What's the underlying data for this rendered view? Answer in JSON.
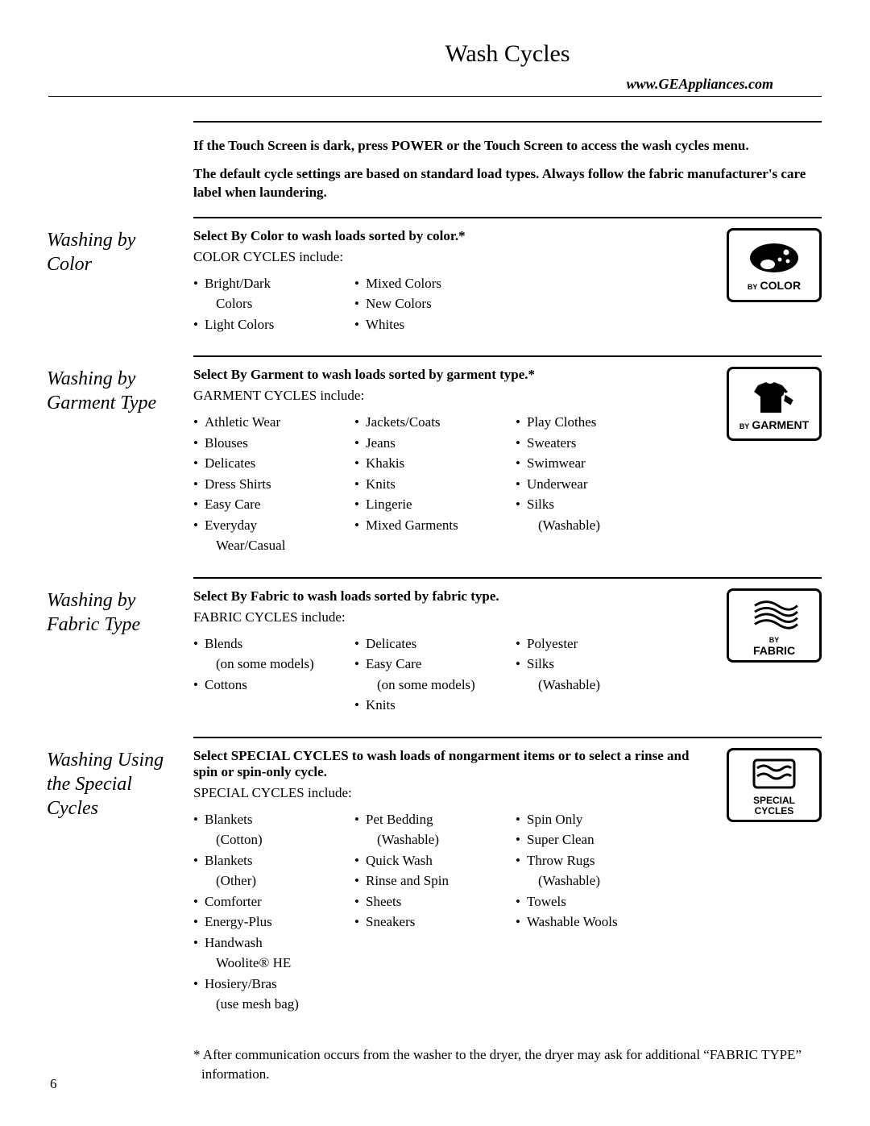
{
  "page_title": "Wash Cycles",
  "url": "www.GEAppliances.com",
  "intro": {
    "line1": "If the Touch Screen is dark, press POWER or the Touch Screen to access the wash cycles menu.",
    "line2": "The default cycle settings are based on standard load types. Always follow the fabric manufacturer's care label when laundering."
  },
  "sections": {
    "color": {
      "heading": "Washing by Color",
      "select": "Select By Color to wash loads sorted by color.*",
      "include_label": "COLOR CYCLES include:",
      "icon_label_small": "BY",
      "icon_label_big": "COLOR",
      "cols": [
        [
          "Bright/Dark Colors",
          "Light Colors"
        ],
        [
          "Mixed Colors",
          "New Colors",
          "Whites"
        ]
      ]
    },
    "garment": {
      "heading": "Washing by Garment Type",
      "select": "Select By Garment to wash loads sorted by garment type.*",
      "include_label": "GARMENT CYCLES include:",
      "icon_label_small": "BY",
      "icon_label_big": "GARMENT",
      "cols": [
        [
          "Athletic Wear",
          "Blouses",
          "Delicates",
          "Dress Shirts",
          "Easy Care",
          "Everyday Wear/Casual"
        ],
        [
          "Jackets/Coats",
          "Jeans",
          "Khakis",
          "Knits",
          "Lingerie",
          "Mixed Garments"
        ],
        [
          "Play Clothes",
          "Sweaters",
          "Swimwear",
          "Underwear",
          "Silks (Washable)"
        ]
      ]
    },
    "fabric": {
      "heading": "Washing by Fabric Type",
      "select": "Select By Fabric to wash loads sorted by fabric type.",
      "include_label": "FABRIC CYCLES include:",
      "icon_label_small": "BY",
      "icon_label_big": "FABRIC",
      "cols": [
        [
          "Blends (on some models)",
          "Cottons"
        ],
        [
          "Delicates",
          "Easy Care (on some models)",
          "Knits"
        ],
        [
          "Polyester",
          "Silks (Washable)"
        ]
      ]
    },
    "special": {
      "heading": "Washing Using the Special Cycles",
      "select": "Select SPECIAL CYCLES to wash loads of nongarment items or to select a rinse and spin or spin-only cycle.",
      "include_label": "SPECIAL CYCLES include:",
      "icon_label_big1": "SPECIAL",
      "icon_label_big2": "CYCLES",
      "cols": [
        [
          "Blankets (Cotton)",
          "Blankets (Other)",
          "Comforter",
          "Energy-Plus",
          "Handwash Woolite® HE",
          "Hosiery/Bras (use mesh bag)"
        ],
        [
          "Pet Bedding (Washable)",
          "Quick Wash",
          "Rinse and Spin",
          "Sheets",
          "Sneakers"
        ],
        [
          "Spin Only",
          "Super Clean",
          "Throw Rugs (Washable)",
          "Towels",
          "Washable Wools"
        ]
      ]
    }
  },
  "footnote": "* After communication occurs from the washer to the dryer, the dryer may ask for additional “FABRIC TYPE” information.",
  "page_number": "6"
}
